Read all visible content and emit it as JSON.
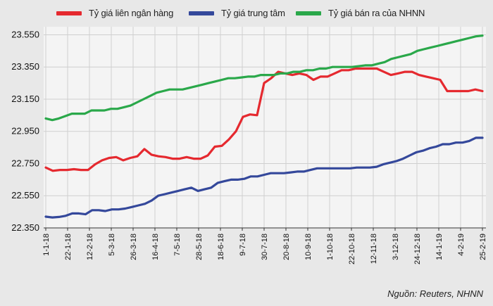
{
  "legend": {
    "items": [
      {
        "label": "Tỷ giá liên ngân hàng",
        "color": "#e5292f"
      },
      {
        "label": "Tỷ giá trung tâm",
        "color": "#34489b"
      },
      {
        "label": "Tỷ giá bán ra của NHNN",
        "color": "#2aa84a"
      }
    ]
  },
  "source": "Nguồn: Reuters, NHNN",
  "colors": {
    "background": "#e8e8e8",
    "plot_background": "#f4f4f4",
    "grid": "#cfcfcf",
    "interbank": "#e5292f",
    "central": "#34489b",
    "sell": "#2aa84a"
  },
  "chart_data": {
    "type": "line",
    "x_labels": [
      "1-1-18",
      "22-1-18",
      "12-2-18",
      "5-3-18",
      "26-3-18",
      "16-4-18",
      "7-5-18",
      "28-5-18",
      "18-6-18",
      "9-7-18",
      "30-7-18",
      "20-8-18",
      "10-9-18",
      "1-10-18",
      "22-10-18",
      "12-11-18",
      "3-12-18",
      "24-12-18",
      "14-1-19",
      "4-2-19",
      "25-2-19"
    ],
    "y_ticks": [
      "22.350",
      "22.550",
      "22.750",
      "22.950",
      "23.150",
      "23.350",
      "23.550"
    ],
    "ylim": [
      22350,
      23600
    ],
    "grid": true,
    "legend_position": "top",
    "series": [
      {
        "name": "Tỷ giá liên ngân hàng",
        "color": "#e5292f",
        "values": [
          22725,
          22705,
          22710,
          22710,
          22715,
          22710,
          22710,
          22745,
          22770,
          22785,
          22790,
          22770,
          22785,
          22795,
          22840,
          22805,
          22795,
          22790,
          22780,
          22780,
          22790,
          22780,
          22780,
          22800,
          22855,
          22860,
          22900,
          22950,
          23040,
          23055,
          23050,
          23250,
          23280,
          23320,
          23310,
          23300,
          23310,
          23300,
          23270,
          23290,
          23290,
          23310,
          23330,
          23330,
          23340,
          23340,
          23340,
          23340,
          23320,
          23300,
          23310,
          23320,
          23320,
          23300,
          23290,
          23280,
          23270,
          23200,
          23200,
          23200,
          23200,
          23210,
          23200
        ]
      },
      {
        "name": "Tỷ giá trung tâm",
        "color": "#34489b",
        "values": [
          22420,
          22415,
          22418,
          22425,
          22440,
          22440,
          22435,
          22460,
          22460,
          22455,
          22465,
          22465,
          22470,
          22480,
          22490,
          22500,
          22520,
          22550,
          22560,
          22570,
          22580,
          22590,
          22600,
          22580,
          22590,
          22600,
          22630,
          22640,
          22650,
          22650,
          22655,
          22670,
          22670,
          22680,
          22690,
          22690,
          22690,
          22695,
          22700,
          22700,
          22710,
          22720,
          22720,
          22720,
          22720,
          22720,
          22720,
          22725,
          22725,
          22725,
          22730,
          22745,
          22755,
          22765,
          22780,
          22800,
          22820,
          22830,
          22845,
          22855,
          22870,
          22870,
          22880,
          22880,
          22890,
          22910,
          22910
        ]
      },
      {
        "name": "Tỷ giá bán ra của NHNN",
        "color": "#2aa84a",
        "values": [
          23030,
          23020,
          23030,
          23045,
          23060,
          23060,
          23060,
          23080,
          23080,
          23080,
          23090,
          23090,
          23100,
          23110,
          23130,
          23150,
          23170,
          23190,
          23200,
          23210,
          23210,
          23210,
          23220,
          23230,
          23240,
          23250,
          23260,
          23270,
          23280,
          23280,
          23285,
          23290,
          23290,
          23300,
          23300,
          23300,
          23310,
          23310,
          23320,
          23320,
          23330,
          23330,
          23340,
          23340,
          23350,
          23350,
          23350,
          23350,
          23355,
          23360,
          23360,
          23370,
          23380,
          23400,
          23410,
          23420,
          23430,
          23450,
          23460,
          23470,
          23480,
          23490,
          23500,
          23510,
          23520,
          23530,
          23540,
          23545
        ]
      }
    ]
  }
}
